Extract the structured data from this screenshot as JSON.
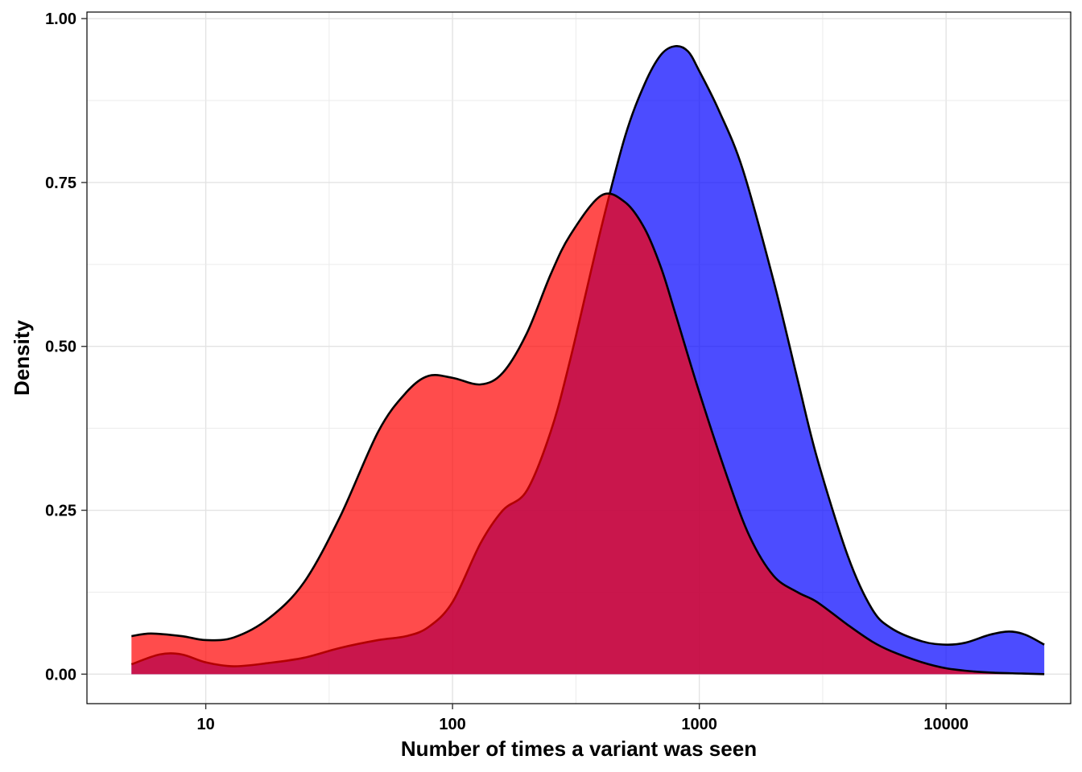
{
  "chart_data": {
    "type": "area",
    "xlabel": "Number of times a variant was seen",
    "ylabel": "Density",
    "x_scale": "log10",
    "xlim": [
      3.3,
      32000
    ],
    "ylim": [
      -0.045,
      1.01
    ],
    "x_ticks": [
      10,
      100,
      1000,
      10000
    ],
    "x_tick_labels": [
      "10",
      "100",
      "1000",
      "10000"
    ],
    "y_ticks": [
      0,
      0.25,
      0.5,
      0.75,
      1.0
    ],
    "y_tick_labels": [
      "0.00",
      "0.25",
      "0.50",
      "0.75",
      "1.00"
    ],
    "grid": true,
    "legend": "none",
    "series": [
      {
        "color": "#0000FF",
        "opacity": 0.7,
        "x": [
          5,
          6.5,
          8,
          10,
          13,
          18,
          25,
          35,
          50,
          65,
          80,
          100,
          130,
          160,
          200,
          250,
          300,
          400,
          500,
          600,
          700,
          800,
          900,
          1000,
          1200,
          1500,
          2000,
          2500,
          3000,
          4000,
          5000,
          6000,
          8000,
          10000,
          12000,
          15000,
          18000,
          21000,
          25000
        ],
        "values": [
          0.015,
          0.03,
          0.03,
          0.018,
          0.012,
          0.017,
          0.025,
          0.04,
          0.052,
          0.058,
          0.072,
          0.11,
          0.2,
          0.25,
          0.28,
          0.37,
          0.48,
          0.68,
          0.82,
          0.9,
          0.945,
          0.958,
          0.95,
          0.92,
          0.86,
          0.77,
          0.6,
          0.45,
          0.33,
          0.18,
          0.1,
          0.07,
          0.05,
          0.045,
          0.048,
          0.06,
          0.065,
          0.06,
          0.045
        ]
      },
      {
        "color": "#FF0000",
        "opacity": 0.7,
        "x": [
          5,
          6,
          8,
          10,
          13,
          18,
          25,
          35,
          50,
          65,
          80,
          100,
          130,
          160,
          200,
          250,
          300,
          400,
          500,
          600,
          700,
          800,
          1000,
          1300,
          1600,
          2000,
          2500,
          3000,
          4000,
          5000,
          6000,
          8000,
          10000,
          13000,
          16000,
          20000,
          25000
        ],
        "values": [
          0.058,
          0.062,
          0.058,
          0.052,
          0.056,
          0.085,
          0.14,
          0.24,
          0.37,
          0.43,
          0.455,
          0.452,
          0.442,
          0.46,
          0.52,
          0.61,
          0.67,
          0.73,
          0.72,
          0.68,
          0.62,
          0.55,
          0.43,
          0.3,
          0.21,
          0.15,
          0.125,
          0.11,
          0.075,
          0.05,
          0.035,
          0.018,
          0.009,
          0.004,
          0.002,
          0.001,
          0.0
        ]
      }
    ]
  }
}
